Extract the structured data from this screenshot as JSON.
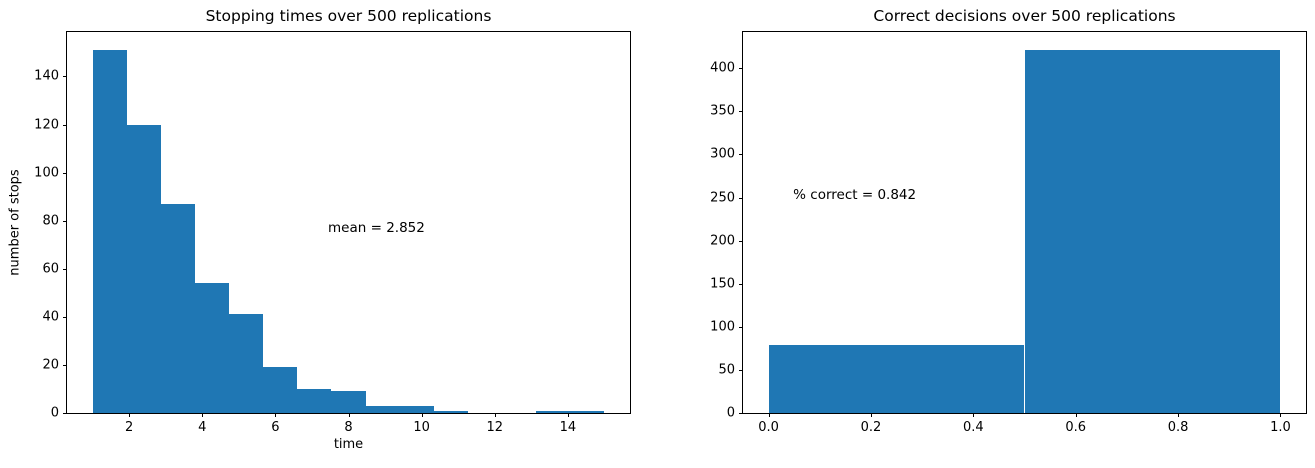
{
  "figure": {
    "background_color": "#ffffff",
    "bar_color": "#1f77b4",
    "spine_color": "#000000",
    "text_color": "#000000"
  },
  "chart_data": [
    {
      "type": "bar",
      "subtype": "histogram",
      "title": "Stopping times over 500 replications",
      "xlabel": "time",
      "ylabel": "number of stops",
      "bin_edges": [
        1.0,
        1.9333,
        2.8667,
        3.8,
        4.7333,
        5.6667,
        6.6,
        7.5333,
        8.4667,
        9.4,
        10.3333,
        11.2667,
        12.2,
        13.1333,
        14.0667,
        15.0
      ],
      "counts": [
        151,
        120,
        87,
        54,
        41,
        19,
        10,
        9,
        3,
        3,
        1,
        0,
        0,
        1,
        1
      ],
      "total_replications": 500,
      "xlim": [
        0.3,
        15.7
      ],
      "ylim": [
        0,
        158.5
      ],
      "xticks": [
        2,
        4,
        6,
        8,
        10,
        12,
        14
      ],
      "xtick_labels": [
        "2",
        "4",
        "6",
        "8",
        "10",
        "12",
        "14"
      ],
      "yticks": [
        0,
        20,
        40,
        60,
        80,
        100,
        120,
        140
      ],
      "ytick_labels": [
        "0",
        "20",
        "40",
        "60",
        "80",
        "100",
        "120",
        "140"
      ],
      "grid": false,
      "legend": null,
      "annotation": {
        "text": "mean = 2.852",
        "x": 7.44,
        "y": 77
      }
    },
    {
      "type": "bar",
      "subtype": "histogram",
      "title": "Correct decisions over 500 replications",
      "xlabel": "",
      "ylabel": "",
      "bin_edges": [
        0.0,
        0.5,
        1.0
      ],
      "counts": [
        79,
        421
      ],
      "total_replications": 500,
      "xlim": [
        -0.05,
        1.05
      ],
      "ylim": [
        0,
        442
      ],
      "xticks": [
        0.0,
        0.2,
        0.4,
        0.6,
        0.8,
        1.0
      ],
      "xtick_labels": [
        "0.0",
        "0.2",
        "0.4",
        "0.6",
        "0.8",
        "1.0"
      ],
      "yticks": [
        0,
        50,
        100,
        150,
        200,
        250,
        300,
        350,
        400
      ],
      "ytick_labels": [
        "0",
        "50",
        "100",
        "150",
        "200",
        "250",
        "300",
        "350",
        "400"
      ],
      "grid": false,
      "legend": null,
      "annotation": {
        "text": "% correct = 0.842",
        "x": 0.048,
        "y": 253
      }
    }
  ]
}
